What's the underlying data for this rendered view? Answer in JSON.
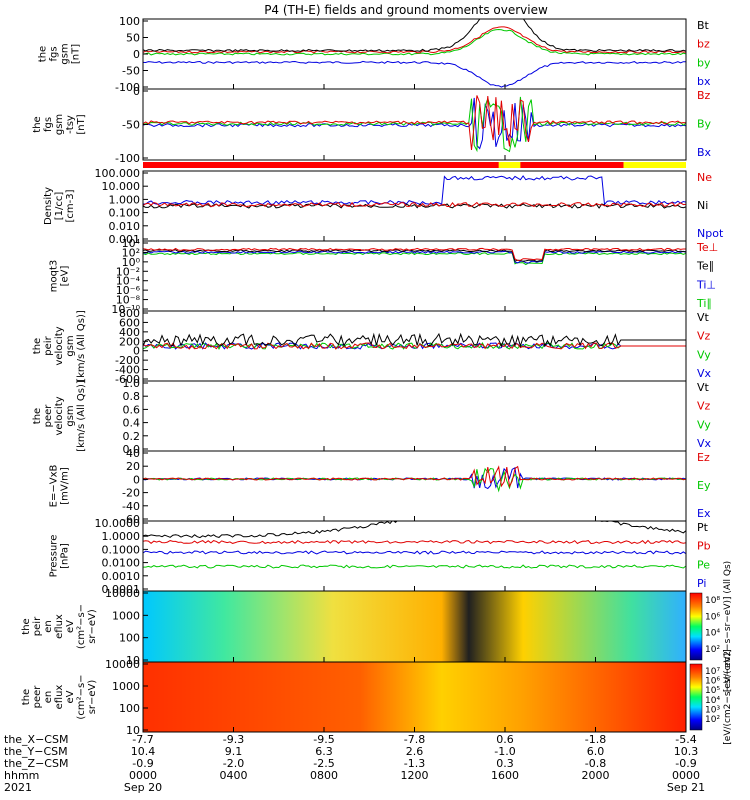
{
  "title": "P4 (TH-E) fields and ground moments overview",
  "chart_data": {
    "type": "multi-panel time series overview",
    "x_range_hhmm": [
      "0000",
      "0000"
    ],
    "x_ticks": [
      "0000",
      "0400",
      "0800",
      "1200",
      "1600",
      "2000",
      "0000"
    ],
    "panels": [
      {
        "ylabel": [
          "the",
          "fgs",
          "gsm",
          "[nT]"
        ],
        "ylim": [
          -100,
          100
        ],
        "yticks": [
          "100",
          "50",
          "0",
          "-50",
          "-100"
        ],
        "legend": [
          {
            "label": "Bt",
            "color": "#000000"
          },
          {
            "label": "bz",
            "color": "#e00000"
          },
          {
            "label": "by",
            "color": "#00c800"
          },
          {
            "label": "bx",
            "color": "#0000e0"
          }
        ]
      },
      {
        "ylabel": [
          "the",
          "fgs",
          "gsm",
          "-tsy",
          "[nT]"
        ],
        "ylim": [
          -120,
          30
        ],
        "yticks": [
          "0",
          "-50",
          "-100"
        ],
        "legend": [
          {
            "label": "Bz",
            "color": "#e00000"
          },
          {
            "label": "By",
            "color": "#00c800"
          },
          {
            "label": "Bx",
            "color": "#0000e0"
          }
        ]
      },
      {
        "ylabel": [
          "Density",
          "[1/cc]",
          "[cm-3]"
        ],
        "scale": "log",
        "ylim": [
          0.0005,
          300
        ],
        "yticks": [
          "100.000",
          "10.000",
          "1.000",
          "0.100",
          "0.010",
          "0.001"
        ],
        "legend": [
          {
            "label": "Ne",
            "color": "#e00000"
          },
          {
            "label": "Ni",
            "color": "#000000"
          },
          {
            "label": "Npot",
            "color": "#0000e0"
          }
        ]
      },
      {
        "ylabel": [
          "moqt3",
          "[eV]"
        ],
        "scale": "log",
        "yticks": [
          "10⁴",
          "10²",
          "10⁰",
          "10⁻²",
          "10⁻⁴",
          "10⁻⁶",
          "10⁻⁸",
          "10⁻¹⁰"
        ],
        "legend": [
          {
            "label": "Te⊥",
            "color": "#e00000"
          },
          {
            "label": "Te∥",
            "color": "#000000"
          },
          {
            "label": "Ti⊥",
            "color": "#0000e0"
          },
          {
            "label": "Ti∥",
            "color": "#00c800"
          }
        ]
      },
      {
        "ylabel": [
          "the",
          "peir",
          "velocity",
          "gsm",
          "[km/s (All Qs)]"
        ],
        "ylim": [
          -600,
          800
        ],
        "yticks": [
          "800",
          "600",
          "400",
          "200",
          "0",
          "-200",
          "-400",
          "-600"
        ],
        "legend": [
          {
            "label": "Vt",
            "color": "#000000"
          },
          {
            "label": "Vz",
            "color": "#e00000"
          },
          {
            "label": "Vy",
            "color": "#00c800"
          },
          {
            "label": "Vx",
            "color": "#0000e0"
          }
        ]
      },
      {
        "ylabel": [
          "the",
          "peer",
          "velocity",
          "gsm",
          "[km/s (All Qs)]"
        ],
        "ylim": [
          0,
          1
        ],
        "yticks": [
          "1.0",
          "0.8",
          "0.6",
          "0.4",
          "0.2",
          "0.0"
        ],
        "legend": [
          {
            "label": "Vt",
            "color": "#000000"
          },
          {
            "label": "Vz",
            "color": "#e00000"
          },
          {
            "label": "Vy",
            "color": "#00c800"
          },
          {
            "label": "Vx",
            "color": "#0000e0"
          }
        ]
      },
      {
        "ylabel": [
          "E=−VxB",
          "[mV/m]"
        ],
        "ylim": [
          -60,
          40
        ],
        "yticks": [
          "40",
          "20",
          "0",
          "-20",
          "-40",
          "-60"
        ],
        "legend": [
          {
            "label": "Ez",
            "color": "#e00000"
          },
          {
            "label": "Ey",
            "color": "#00c800"
          },
          {
            "label": "Ex",
            "color": "#0000e0"
          }
        ]
      },
      {
        "ylabel": [
          "Pressure",
          "[nPa]"
        ],
        "scale": "log",
        "yticks": [
          "10.0000",
          "1.0000",
          "0.1000",
          "0.0100",
          "0.0010",
          "0.0001"
        ],
        "legend": [
          {
            "label": "Pt",
            "color": "#000000"
          },
          {
            "label": "Pb",
            "color": "#e00000"
          },
          {
            "label": "Pe",
            "color": "#00c800"
          },
          {
            "label": "Pi",
            "color": "#0000e0"
          }
        ]
      },
      {
        "ylabel": [
          "the",
          "peir",
          "en",
          "eflux",
          "eV",
          "(cm²−s−",
          "sr−eV)"
        ],
        "scale": "log",
        "yticks": [
          "10000",
          "1000",
          "100",
          "10"
        ],
        "colorbar_ticks": [
          "10⁸",
          "10⁶",
          "10⁴",
          "10²"
        ],
        "colorbar_label": "[eV/(cm2−s−sr−eV)] (All Qs)"
      },
      {
        "ylabel": [
          "the",
          "peer",
          "en",
          "eflux",
          "eV",
          "(cm²−s−",
          "sr−eV)"
        ],
        "scale": "log",
        "yticks": [
          "10000",
          "1000",
          "100",
          "10"
        ],
        "colorbar_ticks": [
          "10⁷",
          "10⁶",
          "10⁵",
          "10⁴",
          "10³",
          "10²"
        ],
        "colorbar_label": "[eV/(cm2−s−sr−eV)]"
      }
    ],
    "footer": {
      "rows": [
        {
          "label": "the_X−CSM",
          "values": [
            "-7.7",
            "-9.3",
            "-9.5",
            "-7.8",
            "0.6",
            "-1.8",
            "-5.4"
          ]
        },
        {
          "label": "the_Y−CSM",
          "values": [
            "10.4",
            "9.1",
            "6.3",
            "2.6",
            "-1.0",
            "6.0",
            "10.3"
          ]
        },
        {
          "label": "the_Z−CSM",
          "values": [
            "-0.9",
            "-2.0",
            "-2.5",
            "-1.3",
            "0.3",
            "-0.8",
            "-0.9"
          ]
        },
        {
          "label": "hhmm",
          "values": [
            "0000",
            "0400",
            "0800",
            "1200",
            "1600",
            "2000",
            "0000"
          ]
        }
      ],
      "year": "2021",
      "dates": [
        {
          "tick": 0,
          "label": "Sep 20"
        },
        {
          "tick": 6,
          "label": "Sep 21"
        }
      ]
    }
  }
}
